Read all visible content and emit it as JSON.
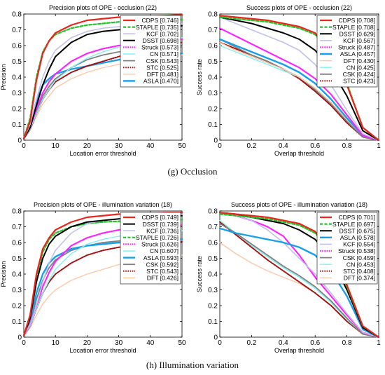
{
  "captions": {
    "g": "(g) Occlusion",
    "h": "(h) Illumination variation"
  },
  "colors": {
    "CDPS": "#e8261e",
    "STAPLE": "#22c42a",
    "KCF": "#c0c0ec",
    "DSST": "#000000",
    "Struck": "#ff22ff",
    "CN": "#80f0f0",
    "CSK": "#808080",
    "STC": "#a01010",
    "DFT": "#fbc8a8",
    "ASLA": "#18a0e6"
  },
  "styles": {
    "CDPS": "solid",
    "STAPLE": "dash",
    "KCF": "solid",
    "DSST": "solid",
    "Struck": "dot",
    "CN": "solid",
    "CSK": "solid",
    "STC": "dot",
    "DFT": "solid",
    "ASLA": "solid"
  },
  "widths": {
    "CDPS": 2.2,
    "STAPLE": 2.2,
    "KCF": 1.6,
    "DSST": 2.0,
    "Struck": 2.2,
    "CN": 1.4,
    "CSK": 1.8,
    "STC": 2.0,
    "DFT": 1.4,
    "ASLA": 2.4
  },
  "chart_data": [
    {
      "type": "line",
      "title": "Precision plots of OPE - occlusion (22)",
      "xlabel": "Location error threshold",
      "ylabel": "Precision",
      "xlim": [
        0,
        50
      ],
      "ylim": [
        0,
        0.8
      ],
      "xticks": [
        0,
        10,
        20,
        30,
        40,
        50
      ],
      "yticks": [
        0,
        0.1,
        0.2,
        0.3,
        0.4,
        0.5,
        0.6,
        0.7,
        0.8
      ],
      "legend_position": "top-right",
      "x": [
        0,
        2,
        4,
        6,
        8,
        10,
        15,
        20,
        25,
        30,
        35,
        40,
        45,
        50
      ],
      "series": [
        {
          "name": "CDPS [0.746]",
          "key": "CDPS",
          "values": [
            0.01,
            0.12,
            0.38,
            0.55,
            0.63,
            0.68,
            0.73,
            0.76,
            0.77,
            0.78,
            0.78,
            0.785,
            0.79,
            0.795
          ]
        },
        {
          "name": "STAPLE [0.735]",
          "key": "STAPLE",
          "values": [
            0.01,
            0.14,
            0.4,
            0.56,
            0.63,
            0.67,
            0.71,
            0.73,
            0.74,
            0.75,
            0.755,
            0.76,
            0.765,
            0.765
          ]
        },
        {
          "name": "KCF [0.702]",
          "key": "KCF",
          "values": [
            0.01,
            0.1,
            0.26,
            0.4,
            0.5,
            0.57,
            0.65,
            0.69,
            0.71,
            0.72,
            0.725,
            0.73,
            0.735,
            0.74
          ]
        },
        {
          "name": "DSST [0.698]",
          "key": "DSST",
          "values": [
            0.01,
            0.08,
            0.22,
            0.35,
            0.45,
            0.53,
            0.62,
            0.67,
            0.69,
            0.7,
            0.71,
            0.715,
            0.72,
            0.725
          ]
        },
        {
          "name": "Struck [0.573]",
          "key": "Struck",
          "values": [
            0.01,
            0.08,
            0.2,
            0.3,
            0.37,
            0.42,
            0.5,
            0.55,
            0.58,
            0.6,
            0.61,
            0.62,
            0.63,
            0.64
          ]
        },
        {
          "name": "CN [0.571]",
          "key": "CN",
          "values": [
            0.01,
            0.07,
            0.17,
            0.26,
            0.32,
            0.38,
            0.46,
            0.52,
            0.56,
            0.59,
            0.61,
            0.63,
            0.64,
            0.65
          ]
        },
        {
          "name": "CSK [0.543]",
          "key": "CSK",
          "values": [
            0.01,
            0.07,
            0.18,
            0.28,
            0.34,
            0.39,
            0.46,
            0.51,
            0.54,
            0.56,
            0.57,
            0.58,
            0.585,
            0.59
          ]
        },
        {
          "name": "STC [0.525]",
          "key": "STC",
          "values": [
            0.01,
            0.07,
            0.17,
            0.26,
            0.32,
            0.37,
            0.43,
            0.47,
            0.5,
            0.53,
            0.56,
            0.58,
            0.6,
            0.62
          ]
        },
        {
          "name": "DFT [0.481]",
          "key": "DFT",
          "values": [
            0.01,
            0.06,
            0.15,
            0.23,
            0.28,
            0.33,
            0.39,
            0.43,
            0.46,
            0.48,
            0.5,
            0.52,
            0.53,
            0.54
          ]
        },
        {
          "name": "ASLA [0.470]",
          "key": "ASLA",
          "values": [
            0.01,
            0.1,
            0.25,
            0.35,
            0.39,
            0.42,
            0.45,
            0.47,
            0.49,
            0.51,
            0.52,
            0.53,
            0.54,
            0.55
          ]
        }
      ]
    },
    {
      "type": "line",
      "title": "Success plots of OPE - occlusion (22)",
      "xlabel": "Overlap threshold",
      "ylabel": "Success rate",
      "xlim": [
        0,
        1
      ],
      "ylim": [
        0,
        0.8
      ],
      "xticks": [
        0,
        0.2,
        0.4,
        0.6,
        0.8,
        1
      ],
      "yticks": [
        0,
        0.1,
        0.2,
        0.3,
        0.4,
        0.5,
        0.6,
        0.7,
        0.8
      ],
      "legend_position": "top-right",
      "x": [
        0,
        0.1,
        0.2,
        0.3,
        0.4,
        0.5,
        0.6,
        0.7,
        0.8,
        0.9,
        1.0
      ],
      "series": [
        {
          "name": "CDPS [0.708]",
          "key": "CDPS",
          "values": [
            0.79,
            0.78,
            0.77,
            0.76,
            0.74,
            0.72,
            0.68,
            0.55,
            0.35,
            0.08,
            0.0
          ]
        },
        {
          "name": "STAPLE [0.708]",
          "key": "STAPLE",
          "values": [
            0.78,
            0.77,
            0.76,
            0.75,
            0.73,
            0.71,
            0.67,
            0.56,
            0.36,
            0.08,
            0.0
          ]
        },
        {
          "name": "DSST [0.629]",
          "key": "DSST",
          "values": [
            0.78,
            0.76,
            0.74,
            0.71,
            0.68,
            0.64,
            0.57,
            0.45,
            0.28,
            0.06,
            0.0
          ]
        },
        {
          "name": "KCF [0.567]",
          "key": "KCF",
          "values": [
            0.78,
            0.74,
            0.7,
            0.66,
            0.62,
            0.57,
            0.48,
            0.35,
            0.19,
            0.04,
            0.0
          ]
        },
        {
          "name": "Struck [0.487]",
          "key": "Struck",
          "values": [
            0.71,
            0.66,
            0.61,
            0.56,
            0.51,
            0.46,
            0.39,
            0.29,
            0.16,
            0.03,
            0.0
          ]
        },
        {
          "name": "ASLA [0.457]",
          "key": "ASLA",
          "values": [
            0.64,
            0.6,
            0.56,
            0.52,
            0.48,
            0.43,
            0.36,
            0.26,
            0.14,
            0.03,
            0.0
          ]
        },
        {
          "name": "DFT [0.430]",
          "key": "DFT",
          "values": [
            0.62,
            0.57,
            0.53,
            0.49,
            0.45,
            0.4,
            0.33,
            0.24,
            0.13,
            0.03,
            0.0
          ]
        },
        {
          "name": "CN [0.425]",
          "key": "CN",
          "values": [
            0.6,
            0.56,
            0.52,
            0.48,
            0.44,
            0.4,
            0.33,
            0.24,
            0.13,
            0.03,
            0.0
          ]
        },
        {
          "name": "CSK [0.424]",
          "key": "CSK",
          "values": [
            0.64,
            0.59,
            0.54,
            0.5,
            0.45,
            0.4,
            0.32,
            0.23,
            0.12,
            0.02,
            0.0
          ]
        },
        {
          "name": "STC [0.423]",
          "key": "STC",
          "values": [
            0.62,
            0.58,
            0.54,
            0.5,
            0.45,
            0.39,
            0.31,
            0.22,
            0.11,
            0.02,
            0.0
          ]
        }
      ]
    },
    {
      "type": "line",
      "title": "Precision plots of OPE - illumination variation (18)",
      "xlabel": "Location error threshold",
      "ylabel": "Precision",
      "xlim": [
        0,
        50
      ],
      "ylim": [
        0,
        0.8
      ],
      "xticks": [
        0,
        10,
        20,
        30,
        40,
        50
      ],
      "yticks": [
        0,
        0.1,
        0.2,
        0.3,
        0.4,
        0.5,
        0.6,
        0.7,
        0.8
      ],
      "legend_position": "top-right",
      "x": [
        0,
        2,
        4,
        6,
        8,
        10,
        15,
        20,
        25,
        30,
        35,
        40,
        45,
        50
      ],
      "series": [
        {
          "name": "CDPS [0.749]",
          "key": "CDPS",
          "values": [
            0.01,
            0.14,
            0.4,
            0.56,
            0.63,
            0.68,
            0.73,
            0.76,
            0.77,
            0.78,
            0.78,
            0.785,
            0.79,
            0.79
          ]
        },
        {
          "name": "DSST [0.739]",
          "key": "DSST",
          "values": [
            0.01,
            0.12,
            0.35,
            0.5,
            0.59,
            0.64,
            0.7,
            0.73,
            0.74,
            0.75,
            0.755,
            0.76,
            0.765,
            0.77
          ]
        },
        {
          "name": "KCF [0.736]",
          "key": "KCF",
          "values": [
            0.01,
            0.08,
            0.2,
            0.35,
            0.47,
            0.55,
            0.66,
            0.72,
            0.74,
            0.75,
            0.76,
            0.765,
            0.77,
            0.775
          ]
        },
        {
          "name": "STAPLE [0.726]",
          "key": "STAPLE",
          "values": [
            0.01,
            0.14,
            0.38,
            0.54,
            0.62,
            0.66,
            0.7,
            0.72,
            0.73,
            0.735,
            0.74,
            0.74,
            0.745,
            0.745
          ]
        },
        {
          "name": "Struck [0.626]",
          "key": "Struck",
          "values": [
            0.01,
            0.08,
            0.2,
            0.32,
            0.41,
            0.48,
            0.58,
            0.63,
            0.66,
            0.68,
            0.69,
            0.7,
            0.705,
            0.71
          ]
        },
        {
          "name": "CN [0.607]",
          "key": "CN",
          "values": [
            0.01,
            0.07,
            0.18,
            0.28,
            0.36,
            0.43,
            0.53,
            0.59,
            0.62,
            0.64,
            0.655,
            0.665,
            0.67,
            0.675
          ]
        },
        {
          "name": "ASLA [0.593]",
          "key": "ASLA",
          "values": [
            0.01,
            0.1,
            0.28,
            0.4,
            0.47,
            0.51,
            0.56,
            0.58,
            0.59,
            0.6,
            0.605,
            0.61,
            0.615,
            0.62
          ]
        },
        {
          "name": "CSK [0.592]",
          "key": "CSK",
          "values": [
            0.01,
            0.09,
            0.24,
            0.36,
            0.44,
            0.49,
            0.55,
            0.58,
            0.6,
            0.61,
            0.615,
            0.62,
            0.62,
            0.625
          ]
        },
        {
          "name": "STC [0.543]",
          "key": "STC",
          "values": [
            0.01,
            0.07,
            0.18,
            0.28,
            0.35,
            0.4,
            0.47,
            0.52,
            0.55,
            0.57,
            0.58,
            0.59,
            0.6,
            0.605
          ]
        },
        {
          "name": "DFT [0.426]",
          "key": "DFT",
          "values": [
            0.01,
            0.06,
            0.14,
            0.21,
            0.26,
            0.3,
            0.36,
            0.4,
            0.43,
            0.46,
            0.48,
            0.5,
            0.51,
            0.52
          ]
        }
      ]
    },
    {
      "type": "line",
      "title": "Success plots of OPE - illumination variation (18)",
      "xlabel": "Overlap threshold",
      "ylabel": "Success rate",
      "xlim": [
        0,
        1
      ],
      "ylim": [
        0,
        0.8
      ],
      "xticks": [
        0,
        0.2,
        0.4,
        0.6,
        0.8,
        1
      ],
      "yticks": [
        0,
        0.1,
        0.2,
        0.3,
        0.4,
        0.5,
        0.6,
        0.7,
        0.8
      ],
      "legend_position": "top-right",
      "x": [
        0,
        0.1,
        0.2,
        0.3,
        0.4,
        0.5,
        0.6,
        0.7,
        0.8,
        0.9,
        1.0
      ],
      "series": [
        {
          "name": "CDPS [0.701]",
          "key": "CDPS",
          "values": [
            0.79,
            0.78,
            0.77,
            0.76,
            0.74,
            0.72,
            0.67,
            0.55,
            0.33,
            0.07,
            0.0
          ]
        },
        {
          "name": "STAPLE [0.697]",
          "key": "STAPLE",
          "values": [
            0.78,
            0.77,
            0.76,
            0.75,
            0.73,
            0.71,
            0.66,
            0.54,
            0.32,
            0.07,
            0.0
          ]
        },
        {
          "name": "DSST [0.675]",
          "key": "DSST",
          "values": [
            0.79,
            0.78,
            0.76,
            0.74,
            0.72,
            0.68,
            0.62,
            0.5,
            0.3,
            0.06,
            0.0
          ]
        },
        {
          "name": "ASLA [0.578]",
          "key": "ASLA",
          "values": [
            0.69,
            0.66,
            0.64,
            0.62,
            0.6,
            0.57,
            0.52,
            0.42,
            0.26,
            0.05,
            0.0
          ]
        },
        {
          "name": "KCF [0.554]",
          "key": "KCF",
          "values": [
            0.79,
            0.77,
            0.74,
            0.68,
            0.6,
            0.5,
            0.4,
            0.28,
            0.15,
            0.03,
            0.0
          ]
        },
        {
          "name": "Struck [0.538]",
          "key": "Struck",
          "values": [
            0.79,
            0.77,
            0.74,
            0.7,
            0.64,
            0.52,
            0.38,
            0.26,
            0.14,
            0.03,
            0.0
          ]
        },
        {
          "name": "CSK [0.459]",
          "key": "CSK",
          "values": [
            0.72,
            0.66,
            0.59,
            0.52,
            0.45,
            0.39,
            0.32,
            0.23,
            0.12,
            0.02,
            0.0
          ]
        },
        {
          "name": "CN [0.453]",
          "key": "CN",
          "values": [
            0.74,
            0.66,
            0.58,
            0.51,
            0.44,
            0.38,
            0.31,
            0.22,
            0.11,
            0.02,
            0.0
          ]
        },
        {
          "name": "STC [0.408]",
          "key": "STC",
          "values": [
            0.73,
            0.65,
            0.57,
            0.49,
            0.42,
            0.35,
            0.28,
            0.2,
            0.1,
            0.02,
            0.0
          ]
        },
        {
          "name": "DFT [0.374]",
          "key": "DFT",
          "values": [
            0.6,
            0.53,
            0.47,
            0.42,
            0.38,
            0.34,
            0.28,
            0.2,
            0.1,
            0.02,
            0.0
          ]
        }
      ]
    }
  ]
}
